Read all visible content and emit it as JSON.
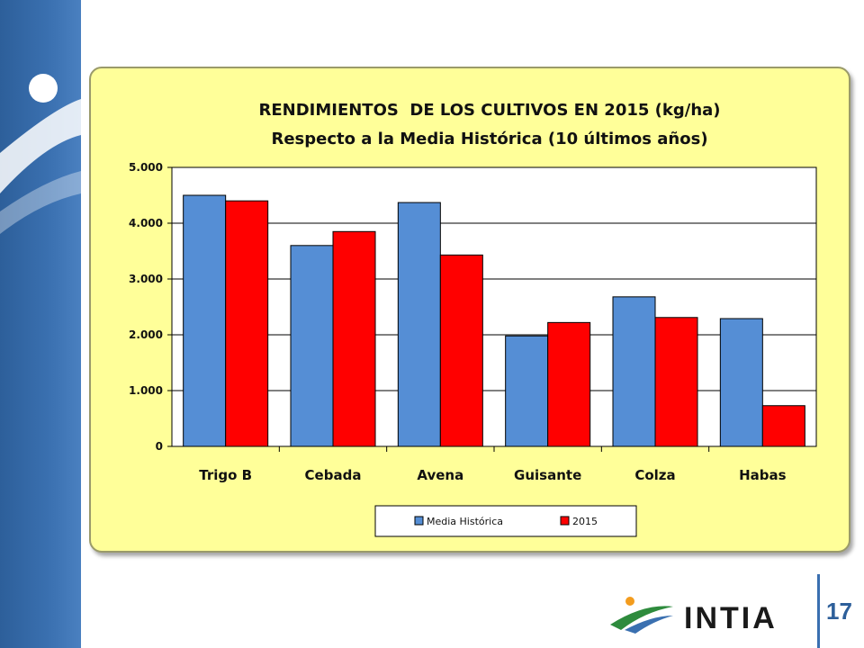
{
  "colors": {
    "accent": "#3a70b0",
    "panel_bg": "#ffff99",
    "series_media": "#558ed5",
    "series_2015": "#ff0000",
    "logo_green": "#2e8b3d",
    "logo_orange": "#f39c1e"
  },
  "slide": {
    "number": "17"
  },
  "logo": {
    "text": "INTIA",
    "icon": "intia-logo-icon"
  },
  "chart_data": {
    "type": "bar",
    "title": "RENDIMIENTOS  DE LOS CULTIVOS EN 2015 (kg/ha)",
    "subtitle": "Respecto a la Media Histórica (10 últimos años)",
    "categories": [
      "Trigo B",
      "Cebada",
      "Avena",
      "Guisante",
      "Colza",
      "Habas"
    ],
    "series": [
      {
        "name": "Media Histórica",
        "color": "#558ed5",
        "values": [
          4500,
          3600,
          4370,
          1980,
          2680,
          2290
        ]
      },
      {
        "name": "2015",
        "color": "#ff0000",
        "values": [
          4400,
          3850,
          3430,
          2220,
          2310,
          730
        ]
      }
    ],
    "ylim": [
      0,
      5000
    ],
    "yticks": [
      "0",
      "1.000",
      "2.000",
      "3.000",
      "4.000",
      "5.000"
    ],
    "grid": true,
    "legend": "bottom"
  }
}
